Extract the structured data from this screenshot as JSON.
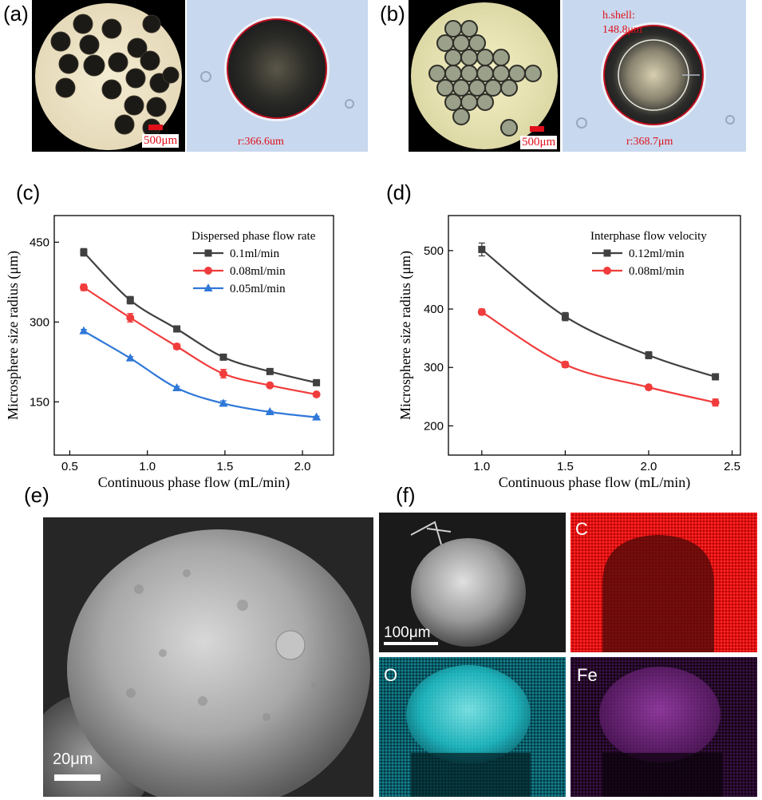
{
  "panels": {
    "a": {
      "label": "(a)",
      "scale_text": "500μm",
      "measure_text": "r:366.6um"
    },
    "b": {
      "label": "(b)",
      "scale_text": "500μm",
      "measure_text": "r:368.7μm",
      "shell_text_1": "h.shell:",
      "shell_text_2": "148.8μm"
    },
    "c": {
      "label": "(c)"
    },
    "d": {
      "label": "(d)"
    },
    "e": {
      "label": "(e)",
      "scale_text": "20μm"
    },
    "f": {
      "label": "(f)",
      "scale_text": "100μm",
      "maps": [
        "C",
        "O",
        "Fe"
      ]
    }
  },
  "colors": {
    "black_series": "#404040",
    "red_series": "#f03c3c",
    "blue_series": "#2f78d8",
    "scale_red": "#e0101a"
  },
  "chart_data": [
    {
      "type": "line",
      "xlabel": "Continuous phase flow (mL/min)",
      "ylabel": "Microsphere size radius (μm)",
      "xlim": [
        0.4,
        2.2
      ],
      "ylim": [
        50,
        500
      ],
      "xticks": [
        0.5,
        1.0,
        1.5,
        2.0
      ],
      "xtick_labels": [
        "0.5",
        "1.0",
        "1.5",
        "2.0"
      ],
      "yticks": [
        150,
        300,
        450
      ],
      "ytick_labels": [
        "150",
        "300",
        "450"
      ],
      "legend_title": "Dispersed phase flow rate",
      "legend_position": "top-right",
      "x": [
        0.59,
        0.89,
        1.19,
        1.49,
        1.79,
        2.09
      ],
      "series": [
        {
          "name": "0.1ml/min",
          "marker": "square",
          "color": "#404040",
          "values": [
            431,
            341,
            287,
            234,
            207,
            186
          ],
          "errors": [
            7,
            7,
            3,
            3,
            4,
            3
          ]
        },
        {
          "name": "0.08ml/min",
          "marker": "circle",
          "color": "#f03c3c",
          "values": [
            365,
            308,
            254,
            203,
            181,
            164
          ],
          "errors": [
            6,
            8,
            5,
            8,
            4,
            3
          ]
        },
        {
          "name": "0.05ml/min",
          "marker": "triangle",
          "color": "#2f78d8",
          "values": [
            283,
            232,
            176,
            147,
            131,
            121
          ],
          "errors": [
            3,
            3,
            3,
            5,
            2,
            2
          ]
        }
      ]
    },
    {
      "type": "line",
      "xlabel": "Continuous phase flow (mL/min)",
      "ylabel": "Microsphere size radius (μm)",
      "xlim": [
        0.8,
        2.55
      ],
      "ylim": [
        150,
        560
      ],
      "xticks": [
        1.0,
        1.5,
        2.0,
        2.5
      ],
      "xtick_labels": [
        "1.0",
        "1.5",
        "2.0",
        "2.5"
      ],
      "yticks": [
        200,
        300,
        400,
        500
      ],
      "ytick_labels": [
        "200",
        "300",
        "400",
        "500"
      ],
      "legend_title": "Interphase flow velocity",
      "legend_position": "top-right",
      "x": [
        1.0,
        1.5,
        2.0,
        2.4
      ],
      "series": [
        {
          "name": "0.12ml/min",
          "marker": "square",
          "color": "#404040",
          "values": [
            502,
            387,
            321,
            284
          ],
          "errors": [
            11,
            7,
            6,
            3
          ]
        },
        {
          "name": "0.08ml/min",
          "marker": "circle",
          "color": "#f03c3c",
          "values": [
            395,
            305,
            266,
            240
          ],
          "errors": [
            5,
            5,
            4,
            6
          ]
        }
      ]
    }
  ]
}
